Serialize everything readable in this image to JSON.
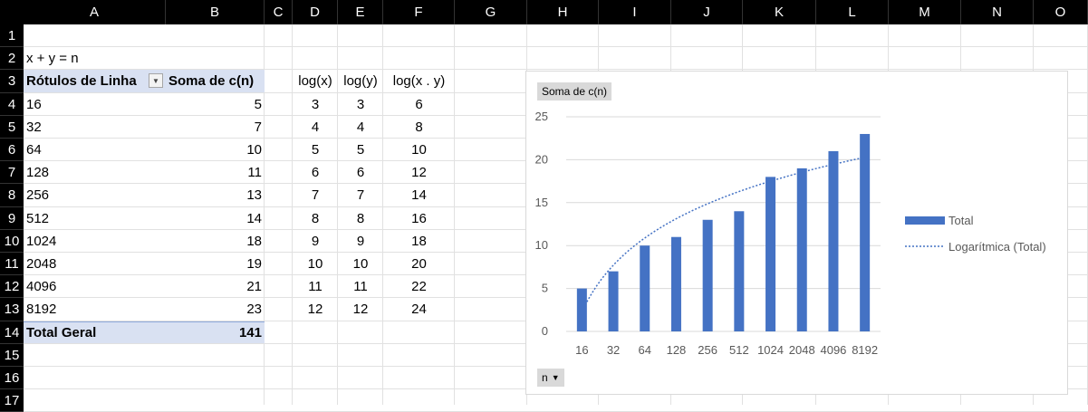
{
  "columns": [
    "A",
    "B",
    "C",
    "D",
    "E",
    "F",
    "G",
    "H",
    "I",
    "J",
    "K",
    "L",
    "M",
    "N",
    "O"
  ],
  "rows": [
    "1",
    "2",
    "3",
    "4",
    "5",
    "6",
    "7",
    "8",
    "9",
    "10",
    "11",
    "12",
    "13",
    "14",
    "15",
    "16",
    "17"
  ],
  "cells": {
    "a2": "x + y = n",
    "pivot_header_row": "Rótulos de Linha",
    "pivot_header_value": "Soma de c(n)",
    "log_headers": [
      "log(x)",
      "log(y)",
      "log(x . y)"
    ],
    "pivot_rows": [
      {
        "label": "16",
        "value": "5",
        "logx": "3",
        "logy": "3",
        "logxy": "6"
      },
      {
        "label": "32",
        "value": "7",
        "logx": "4",
        "logy": "4",
        "logxy": "8"
      },
      {
        "label": "64",
        "value": "10",
        "logx": "5",
        "logy": "5",
        "logxy": "10"
      },
      {
        "label": "128",
        "value": "11",
        "logx": "6",
        "logy": "6",
        "logxy": "12"
      },
      {
        "label": "256",
        "value": "13",
        "logx": "7",
        "logy": "7",
        "logxy": "14"
      },
      {
        "label": "512",
        "value": "14",
        "logx": "8",
        "logy": "8",
        "logxy": "16"
      },
      {
        "label": "1024",
        "value": "18",
        "logx": "9",
        "logy": "9",
        "logxy": "18"
      },
      {
        "label": "2048",
        "value": "19",
        "logx": "10",
        "logy": "10",
        "logxy": "20"
      },
      {
        "label": "4096",
        "value": "21",
        "logx": "11",
        "logy": "11",
        "logxy": "22"
      },
      {
        "label": "8192",
        "value": "23",
        "logx": "12",
        "logy": "12",
        "logxy": "24"
      }
    ],
    "total_label": "Total Geral",
    "total_value": "141"
  },
  "chart": {
    "value_field_button": "Soma de c(n)",
    "axis_field_button": "n"
  },
  "chart_data": {
    "type": "bar",
    "categories": [
      "16",
      "32",
      "64",
      "128",
      "256",
      "512",
      "1024",
      "2048",
      "4096",
      "8192"
    ],
    "series": [
      {
        "name": "Total",
        "values": [
          5,
          7,
          10,
          11,
          13,
          14,
          18,
          19,
          21,
          23
        ]
      }
    ],
    "trendline": {
      "name": "Logarítmica (Total)",
      "type": "logarithmic"
    },
    "ylim": [
      0,
      25
    ],
    "yticks": [
      0,
      5,
      10,
      15,
      20,
      25
    ],
    "legend": "right",
    "grid": true,
    "colors": {
      "bar": "#4472c4",
      "trend": "#4472c4",
      "grid": "#d9d9d9",
      "text": "#595959"
    }
  }
}
